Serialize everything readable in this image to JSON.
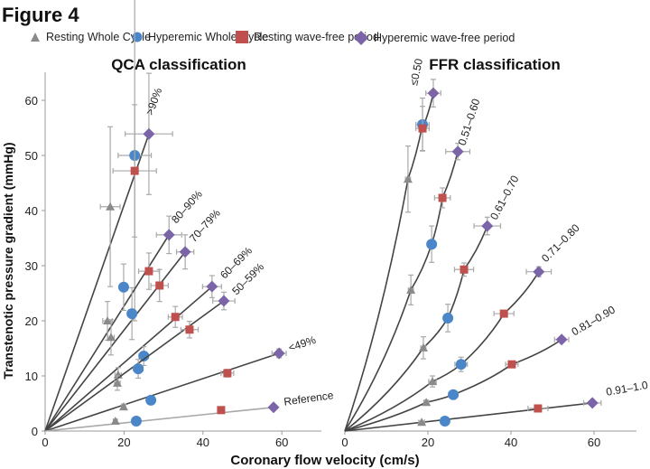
{
  "figure": {
    "title": "Figure 4"
  },
  "legend": [
    {
      "name": "Resting Whole Cycle",
      "marker": "triangle",
      "color": "#8a8a8a"
    },
    {
      "name": "Hyperemic Whole Cycle",
      "marker": "circle",
      "color": "#4a86c8"
    },
    {
      "name": "Resting wave-free period",
      "marker": "square",
      "color": "#c0504d"
    },
    {
      "name": "Hyperemic wave-free period",
      "marker": "diamond",
      "color": "#7b64a8"
    }
  ],
  "colors": {
    "line": "#444444",
    "reference_line": "#a8a8a8",
    "errorbar": "#a9a9a9",
    "axis": "#9a9a9a"
  },
  "chart_data": [
    {
      "type": "scatter",
      "title": "QCA classification",
      "xlabel": "Coronary flow velocity (cm/s)",
      "ylabel": "Transtenotic pressure gradient (mmHg)",
      "xlim": [
        0,
        70
      ],
      "ylim": [
        0,
        65
      ],
      "xticks": [
        0,
        20,
        40,
        60
      ],
      "yticks": [
        0,
        10,
        20,
        30,
        40,
        50,
        60
      ],
      "grid": false,
      "legend": "top",
      "series_order": [
        "Resting Whole Cycle",
        "Hyperemic Whole Cycle",
        "Resting wave-free period",
        "Hyperemic wave-free period"
      ],
      "groups": [
        {
          "label": ">90%",
          "line": "straight",
          "points": [
            {
              "x": 16.5,
              "y": 40.7,
              "xerr": 2.5,
              "yerr": 14.5
            },
            {
              "x": 22.7,
              "y": 50.0,
              "xerr": 4.2,
              "yerr": 30.0
            },
            {
              "x": 22.7,
              "y": 47.2,
              "xerr": 5.5,
              "yerr": 12.0
            },
            {
              "x": 26.3,
              "y": 53.9,
              "xerr": 6.0,
              "yerr": 11.0
            }
          ]
        },
        {
          "label": "80–90%",
          "line": "straight",
          "points": [
            {
              "x": 15.8,
              "y": 20.0,
              "xerr": 1.2,
              "yerr": 3.5
            },
            {
              "x": 19.9,
              "y": 26.1,
              "xerr": 0.8,
              "yerr": 4.2
            },
            {
              "x": 26.3,
              "y": 29.0,
              "xerr": 2.6,
              "yerr": 3.3
            },
            {
              "x": 31.4,
              "y": 35.6,
              "xerr": 3.2,
              "yerr": 3.4
            }
          ]
        },
        {
          "label": "70–79%",
          "line": "straight",
          "points": [
            {
              "x": 16.7,
              "y": 17.0,
              "xerr": 0.8,
              "yerr": 3.2
            },
            {
              "x": 22.0,
              "y": 21.3,
              "xerr": 0.8,
              "yerr": 4.7
            },
            {
              "x": 29.0,
              "y": 26.4,
              "xerr": 2.2,
              "yerr": 2.9
            },
            {
              "x": 35.5,
              "y": 32.5,
              "xerr": 2.2,
              "yerr": 3.1
            }
          ]
        },
        {
          "label": "60–69%",
          "line": "straight",
          "points": [
            {
              "x": 18.5,
              "y": 10.2,
              "xerr": 0.8,
              "yerr": 1.3
            },
            {
              "x": 25.0,
              "y": 13.6,
              "xerr": 1.2,
              "yerr": 1.7
            },
            {
              "x": 33.0,
              "y": 20.7,
              "xerr": 1.8,
              "yerr": 1.9
            },
            {
              "x": 42.3,
              "y": 26.2,
              "xerr": 2.4,
              "yerr": 2.0
            }
          ]
        },
        {
          "label": "50–59%",
          "line": "straight",
          "points": [
            {
              "x": 18.3,
              "y": 8.7,
              "xerr": 0.7,
              "yerr": 1.3
            },
            {
              "x": 23.6,
              "y": 11.3,
              "xerr": 1.2,
              "yerr": 1.7
            },
            {
              "x": 36.6,
              "y": 18.4,
              "xerr": 2.2,
              "yerr": 1.5
            },
            {
              "x": 45.3,
              "y": 23.6,
              "xerr": 2.8,
              "yerr": 1.6
            }
          ]
        },
        {
          "label": "<49%",
          "line": "straight",
          "points": [
            {
              "x": 19.9,
              "y": 4.4,
              "xerr": 0.5,
              "yerr": 0.5
            },
            {
              "x": 26.8,
              "y": 5.6,
              "xerr": 0.6,
              "yerr": 0.5
            },
            {
              "x": 46.2,
              "y": 10.5,
              "xerr": 1.6,
              "yerr": 0.7
            },
            {
              "x": 59.3,
              "y": 14.1,
              "xerr": 1.8,
              "yerr": 0.8
            }
          ]
        },
        {
          "label": "Reference",
          "line": "reference",
          "points": [
            {
              "x": 17.8,
              "y": 1.8,
              "xerr": 0.5,
              "yerr": 0.3
            },
            {
              "x": 23.1,
              "y": 1.8,
              "xerr": 0.5,
              "yerr": 0.3
            },
            {
              "x": 44.6,
              "y": 3.8,
              "xerr": 0.0,
              "yerr": 0.0
            },
            {
              "x": 57.9,
              "y": 4.3,
              "xerr": 0.0,
              "yerr": 0.0
            }
          ]
        }
      ]
    },
    {
      "type": "scatter",
      "title": "FFR classification",
      "xlabel": "Coronary flow velocity (cm/s)",
      "ylabel": "",
      "xlim": [
        0,
        70
      ],
      "ylim": [
        0,
        65
      ],
      "xticks": [
        0,
        20,
        40,
        60
      ],
      "yticks": [],
      "grid": false,
      "groups": [
        {
          "label": "≤0.50",
          "line": "curve",
          "points": [
            {
              "x": 15.2,
              "y": 45.7,
              "xerr": 0.6,
              "yerr": 6.0
            },
            {
              "x": 18.7,
              "y": 55.6,
              "xerr": 1.6,
              "yerr": 4.8
            },
            {
              "x": 18.7,
              "y": 54.9,
              "xerr": 1.6,
              "yerr": 4.0
            },
            {
              "x": 21.3,
              "y": 61.3,
              "xerr": 1.8,
              "yerr": 2.5
            }
          ]
        },
        {
          "label": "0.51–0.60",
          "line": "curve",
          "points": [
            {
              "x": 15.9,
              "y": 25.6,
              "xerr": 0.6,
              "yerr": 2.7
            },
            {
              "x": 20.9,
              "y": 33.9,
              "xerr": 0.7,
              "yerr": 3.3
            },
            {
              "x": 23.5,
              "y": 42.3,
              "xerr": 1.9,
              "yerr": 1.8
            },
            {
              "x": 27.2,
              "y": 50.7,
              "xerr": 2.9,
              "yerr": 1.5
            }
          ]
        },
        {
          "label": "0.61–0.70",
          "line": "curve",
          "points": [
            {
              "x": 18.9,
              "y": 15.1,
              "xerr": 0.6,
              "yerr": 2.0
            },
            {
              "x": 24.8,
              "y": 20.5,
              "xerr": 0.8,
              "yerr": 2.5
            },
            {
              "x": 28.7,
              "y": 29.3,
              "xerr": 2.3,
              "yerr": 1.2
            },
            {
              "x": 34.3,
              "y": 37.2,
              "xerr": 3.2,
              "yerr": 1.6
            }
          ]
        },
        {
          "label": "0.71–0.80",
          "line": "curve",
          "points": [
            {
              "x": 21.1,
              "y": 9.0,
              "xerr": 0.9,
              "yerr": 1.0
            },
            {
              "x": 28.0,
              "y": 12.1,
              "xerr": 1.5,
              "yerr": 1.3
            },
            {
              "x": 38.3,
              "y": 21.3,
              "xerr": 2.4,
              "yerr": 0.5
            },
            {
              "x": 46.7,
              "y": 28.9,
              "xerr": 3.0,
              "yerr": 0.9
            }
          ]
        },
        {
          "label": "0.81–0.90",
          "line": "curve",
          "points": [
            {
              "x": 19.6,
              "y": 5.2,
              "xerr": 0.6,
              "yerr": 0.4
            },
            {
              "x": 26.1,
              "y": 6.6,
              "xerr": 1.1,
              "yerr": 0.4
            },
            {
              "x": 40.2,
              "y": 12.1,
              "xerr": 1.5,
              "yerr": 0.4
            },
            {
              "x": 52.2,
              "y": 16.6,
              "xerr": 1.7,
              "yerr": 0.4
            }
          ]
        },
        {
          "label": "0.91–1.0",
          "line": "straight",
          "points": [
            {
              "x": 18.5,
              "y": 1.6,
              "xerr": 0.7,
              "yerr": 0.2
            },
            {
              "x": 24.1,
              "y": 1.8,
              "xerr": 0.8,
              "yerr": 0.2
            },
            {
              "x": 46.5,
              "y": 4.1,
              "xerr": 2.4,
              "yerr": 0.3
            },
            {
              "x": 59.6,
              "y": 5.1,
              "xerr": 2.1,
              "yerr": 0.3
            }
          ]
        }
      ]
    }
  ]
}
